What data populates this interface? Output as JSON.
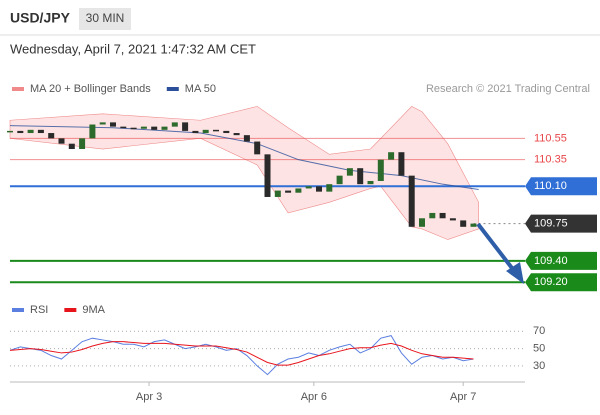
{
  "chart_data": [
    {
      "type": "candlestick",
      "title": "USD/JPY",
      "timeframe": "30 MIN",
      "timestamp": "Wednesday, April 7, 2021 1:47:32 AM CET",
      "credit": "Research © 2021 Trading Central",
      "x": [
        0,
        2,
        4,
        6,
        8,
        10,
        12,
        14,
        16,
        18,
        20,
        22,
        24,
        26,
        28,
        30,
        32,
        34,
        36,
        38,
        40,
        42,
        44,
        46,
        48,
        50,
        52,
        54,
        56,
        58,
        60,
        62,
        64,
        66,
        68,
        70,
        72,
        74,
        76,
        78,
        80,
        82,
        84,
        86,
        88,
        90
      ],
      "values": [
        110.62,
        110.6,
        110.63,
        110.6,
        110.55,
        110.5,
        110.45,
        110.55,
        110.68,
        110.7,
        110.66,
        110.65,
        110.64,
        110.66,
        110.63,
        110.66,
        110.7,
        110.62,
        110.6,
        110.63,
        110.62,
        110.6,
        110.58,
        110.52,
        110.4,
        110.0,
        110.06,
        110.04,
        110.08,
        110.1,
        110.05,
        110.12,
        110.2,
        110.27,
        110.12,
        110.15,
        110.35,
        110.42,
        110.2,
        109.72,
        109.8,
        109.85,
        109.8,
        109.78,
        109.72,
        109.75
      ],
      "up_color": "#2d6b2d",
      "down_color": "#2a2a2a",
      "series": [
        {
          "name": "MA 20 + Bollinger Bands",
          "color": "#f08a8a",
          "fill": "#fde3e3",
          "x": [
            0,
            18,
            37,
            48,
            54,
            62,
            70,
            72,
            78,
            80,
            85,
            91
          ],
          "upper": [
            110.72,
            110.78,
            110.72,
            110.85,
            110.65,
            110.4,
            110.45,
            110.55,
            110.85,
            110.8,
            110.5,
            109.95
          ],
          "lower": [
            110.55,
            110.45,
            110.55,
            110.3,
            109.85,
            109.95,
            110.08,
            110.1,
            109.72,
            109.7,
            109.6,
            109.7
          ]
        },
        {
          "name": "MA 50",
          "color": "#2b4f9a",
          "x": [
            0,
            20,
            37,
            48,
            56,
            66,
            76,
            84,
            91
          ],
          "values": [
            110.67,
            110.65,
            110.6,
            110.5,
            110.35,
            110.25,
            110.2,
            110.12,
            110.07
          ]
        }
      ],
      "xlim": [
        0,
        100
      ],
      "ylim": [
        109.08,
        110.91
      ],
      "yticks": [
        110.55,
        110.35,
        {
          "value": 110.1,
          "label": "110.10"
        },
        109.75,
        {
          "value": 109.4,
          "label": "109.40"
        },
        {
          "value": 109.2,
          "label": "109.20"
        }
      ],
      "ytick_colors": [
        "#e8464a",
        "#e8464a",
        "#2f6fd6",
        "#333333",
        "#1a8a1a",
        "#1a8a1a"
      ],
      "ytick_boxed": [
        false,
        false,
        true,
        true,
        true,
        true
      ]
    },
    {
      "type": "line",
      "x": [
        0,
        2,
        4,
        6,
        8,
        10,
        12,
        14,
        16,
        18,
        20,
        22,
        24,
        26,
        28,
        30,
        32,
        34,
        36,
        38,
        40,
        42,
        44,
        46,
        48,
        50,
        52,
        54,
        56,
        58,
        60,
        62,
        64,
        66,
        68,
        70,
        72,
        74,
        76,
        78,
        80,
        82,
        84,
        86,
        88,
        90
      ],
      "series": [
        {
          "name": "RSI",
          "color": "#5b7fe0",
          "values": [
            48,
            52,
            50,
            48,
            42,
            38,
            48,
            58,
            62,
            60,
            58,
            55,
            55,
            52,
            58,
            60,
            55,
            50,
            52,
            55,
            52,
            48,
            50,
            42,
            30,
            20,
            32,
            38,
            40,
            45,
            42,
            48,
            52,
            55,
            45,
            50,
            62,
            65,
            45,
            32,
            40,
            42,
            38,
            40,
            36,
            38
          ]
        },
        {
          "name": "9MA",
          "color": "#e8141c",
          "values": [
            48,
            49,
            50,
            49,
            47,
            45,
            46,
            49,
            53,
            56,
            58,
            58,
            57,
            56,
            56,
            56,
            55,
            54,
            53,
            53,
            53,
            51,
            49,
            46,
            40,
            34,
            31,
            31,
            34,
            38,
            42,
            44,
            47,
            50,
            51,
            51,
            54,
            56,
            53,
            48,
            44,
            42,
            40,
            40,
            39,
            38
          ]
        }
      ],
      "xlim": [
        0,
        100
      ],
      "ylim": [
        8,
        83
      ],
      "yticks": [
        70,
        50,
        30
      ],
      "xticks": [
        {
          "value": 27,
          "label": "Apr 3"
        },
        {
          "value": 59,
          "label": "Apr 6"
        },
        {
          "value": 88,
          "label": "Apr 7"
        }
      ]
    }
  ]
}
